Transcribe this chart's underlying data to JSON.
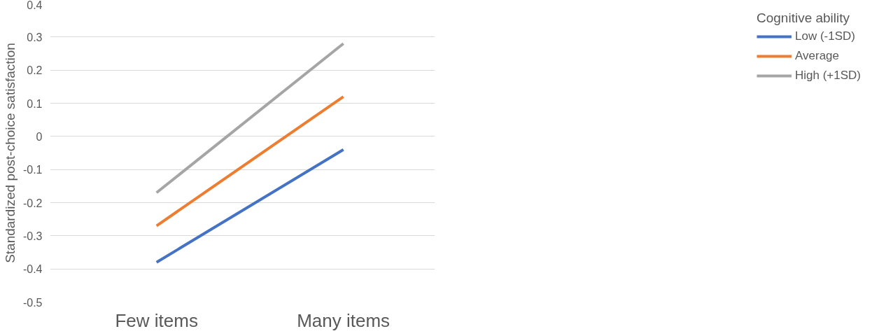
{
  "chart_data": {
    "type": "line",
    "categories": [
      "Few items",
      "Many items"
    ],
    "ylabel": "Standardized post-choice satisfaction",
    "legend_title": "Cognitive ability",
    "ylim": [
      -0.5,
      0.4
    ],
    "yticks": [
      -0.5,
      -0.4,
      -0.3,
      -0.2,
      -0.1,
      0,
      0.1,
      0.2,
      0.3,
      0.4
    ],
    "grid": "y",
    "legend": "right",
    "marker": "none",
    "line_style": "solid",
    "series": [
      {
        "name": "Low (-1SD)",
        "color": "#4472c4",
        "values": [
          -0.38,
          -0.04
        ]
      },
      {
        "name": "Average",
        "color": "#ed7d31",
        "values": [
          -0.27,
          0.12
        ]
      },
      {
        "name": "High (+1SD)",
        "color": "#a5a5a5",
        "values": [
          -0.17,
          0.28
        ]
      }
    ]
  }
}
